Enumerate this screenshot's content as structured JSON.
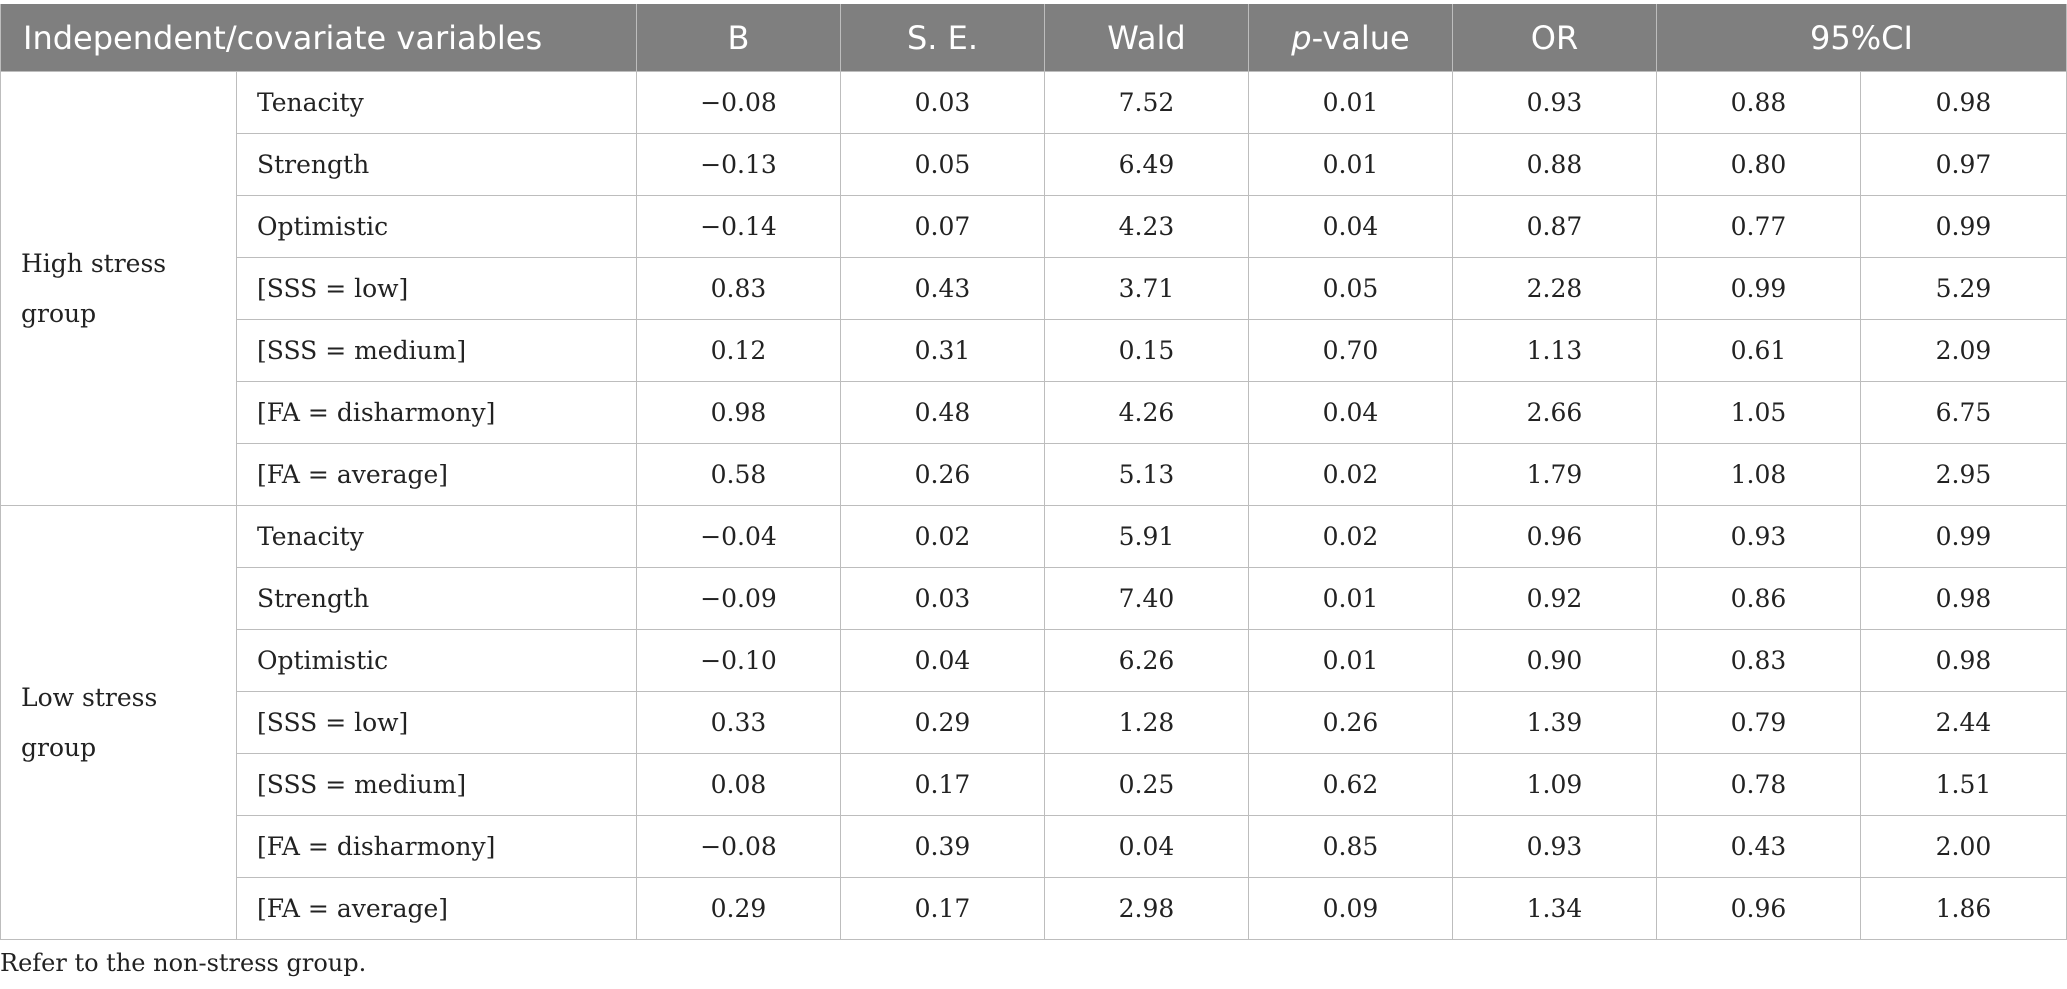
{
  "headers": {
    "variables": "Independent/covariate variables",
    "b": "B",
    "se": "S. E.",
    "wald": "Wald",
    "p_italic": "p",
    "p_suffix": "-value",
    "or": "OR",
    "ci": "95%CI"
  },
  "groups": [
    {
      "name_line1": "High stress",
      "name_line2": "group",
      "rows": [
        {
          "variable": "Tenacity",
          "b": "−0.08",
          "se": "0.03",
          "wald": "7.52",
          "p": "0.01",
          "or": "0.93",
          "ci_low": "0.88",
          "ci_high": "0.98"
        },
        {
          "variable": "Strength",
          "b": "−0.13",
          "se": "0.05",
          "wald": "6.49",
          "p": "0.01",
          "or": "0.88",
          "ci_low": "0.80",
          "ci_high": "0.97"
        },
        {
          "variable": "Optimistic",
          "b": "−0.14",
          "se": "0.07",
          "wald": "4.23",
          "p": "0.04",
          "or": "0.87",
          "ci_low": "0.77",
          "ci_high": "0.99"
        },
        {
          "variable": "[SSS = low]",
          "b": "0.83",
          "se": "0.43",
          "wald": "3.71",
          "p": "0.05",
          "or": "2.28",
          "ci_low": "0.99",
          "ci_high": "5.29"
        },
        {
          "variable": "[SSS = medium]",
          "b": "0.12",
          "se": "0.31",
          "wald": "0.15",
          "p": "0.70",
          "or": "1.13",
          "ci_low": "0.61",
          "ci_high": "2.09"
        },
        {
          "variable": "[FA = disharmony]",
          "b": "0.98",
          "se": "0.48",
          "wald": "4.26",
          "p": "0.04",
          "or": "2.66",
          "ci_low": "1.05",
          "ci_high": "6.75"
        },
        {
          "variable": "[FA = average]",
          "b": "0.58",
          "se": "0.26",
          "wald": "5.13",
          "p": "0.02",
          "or": "1.79",
          "ci_low": "1.08",
          "ci_high": "2.95"
        }
      ]
    },
    {
      "name_line1": "Low stress",
      "name_line2": "group",
      "rows": [
        {
          "variable": "Tenacity",
          "b": "−0.04",
          "se": "0.02",
          "wald": "5.91",
          "p": "0.02",
          "or": "0.96",
          "ci_low": "0.93",
          "ci_high": "0.99"
        },
        {
          "variable": "Strength",
          "b": "−0.09",
          "se": "0.03",
          "wald": "7.40",
          "p": "0.01",
          "or": "0.92",
          "ci_low": "0.86",
          "ci_high": "0.98"
        },
        {
          "variable": "Optimistic",
          "b": "−0.10",
          "se": "0.04",
          "wald": "6.26",
          "p": "0.01",
          "or": "0.90",
          "ci_low": "0.83",
          "ci_high": "0.98"
        },
        {
          "variable": "[SSS = low]",
          "b": "0.33",
          "se": "0.29",
          "wald": "1.28",
          "p": "0.26",
          "or": "1.39",
          "ci_low": "0.79",
          "ci_high": "2.44"
        },
        {
          "variable": "[SSS = medium]",
          "b": "0.08",
          "se": "0.17",
          "wald": "0.25",
          "p": "0.62",
          "or": "1.09",
          "ci_low": "0.78",
          "ci_high": "1.51"
        },
        {
          "variable": "[FA = disharmony]",
          "b": "−0.08",
          "se": "0.39",
          "wald": "0.04",
          "p": "0.85",
          "or": "0.93",
          "ci_low": "0.43",
          "ci_high": "2.00"
        },
        {
          "variable": "[FA = average]",
          "b": "0.29",
          "se": "0.17",
          "wald": "2.98",
          "p": "0.09",
          "or": "1.34",
          "ci_low": "0.96",
          "ci_high": "1.86"
        }
      ]
    }
  ],
  "footnote": "Refer to the non-stress group.",
  "colors": {
    "header_bg": "#7f7f7f",
    "header_text": "#ffffff",
    "grid_line": "#bdbdbd",
    "body_text": "#222222"
  }
}
